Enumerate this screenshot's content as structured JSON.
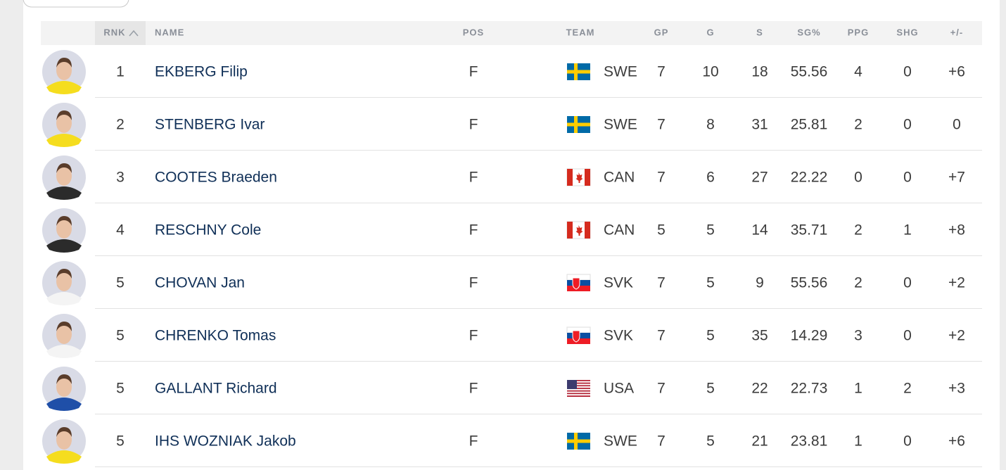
{
  "table": {
    "header": [
      "RNK",
      "NAME",
      "POS",
      "TEAM",
      "GP",
      "G",
      "S",
      "SG%",
      "PPG",
      "SHG",
      "+/-"
    ],
    "rows": [
      [
        "1",
        "EKBERG Filip",
        "F",
        "SWE",
        "7",
        "10",
        "18",
        "55.56",
        "4",
        "0",
        "+6"
      ],
      [
        "2",
        "STENBERG Ivar",
        "F",
        "SWE",
        "7",
        "8",
        "31",
        "25.81",
        "2",
        "0",
        "0"
      ],
      [
        "3",
        "COOTES Braeden",
        "F",
        "CAN",
        "7",
        "6",
        "27",
        "22.22",
        "0",
        "0",
        "+7"
      ],
      [
        "4",
        "RESCHNY Cole",
        "F",
        "CAN",
        "5",
        "5",
        "14",
        "35.71",
        "2",
        "1",
        "+8"
      ],
      [
        "5",
        "CHOVAN Jan",
        "F",
        "SVK",
        "7",
        "5",
        "9",
        "55.56",
        "2",
        "0",
        "+2"
      ],
      [
        "5",
        "CHRENKO Tomas",
        "F",
        "SVK",
        "7",
        "5",
        "35",
        "14.29",
        "3",
        "0",
        "+2"
      ],
      [
        "5",
        "GALLANT Richard",
        "F",
        "USA",
        "7",
        "5",
        "22",
        "22.73",
        "1",
        "2",
        "+3"
      ],
      [
        "5",
        "IHS WOZNIAK Jakob",
        "F",
        "SWE",
        "7",
        "5",
        "21",
        "23.81",
        "1",
        "0",
        "+6"
      ]
    ]
  }
}
